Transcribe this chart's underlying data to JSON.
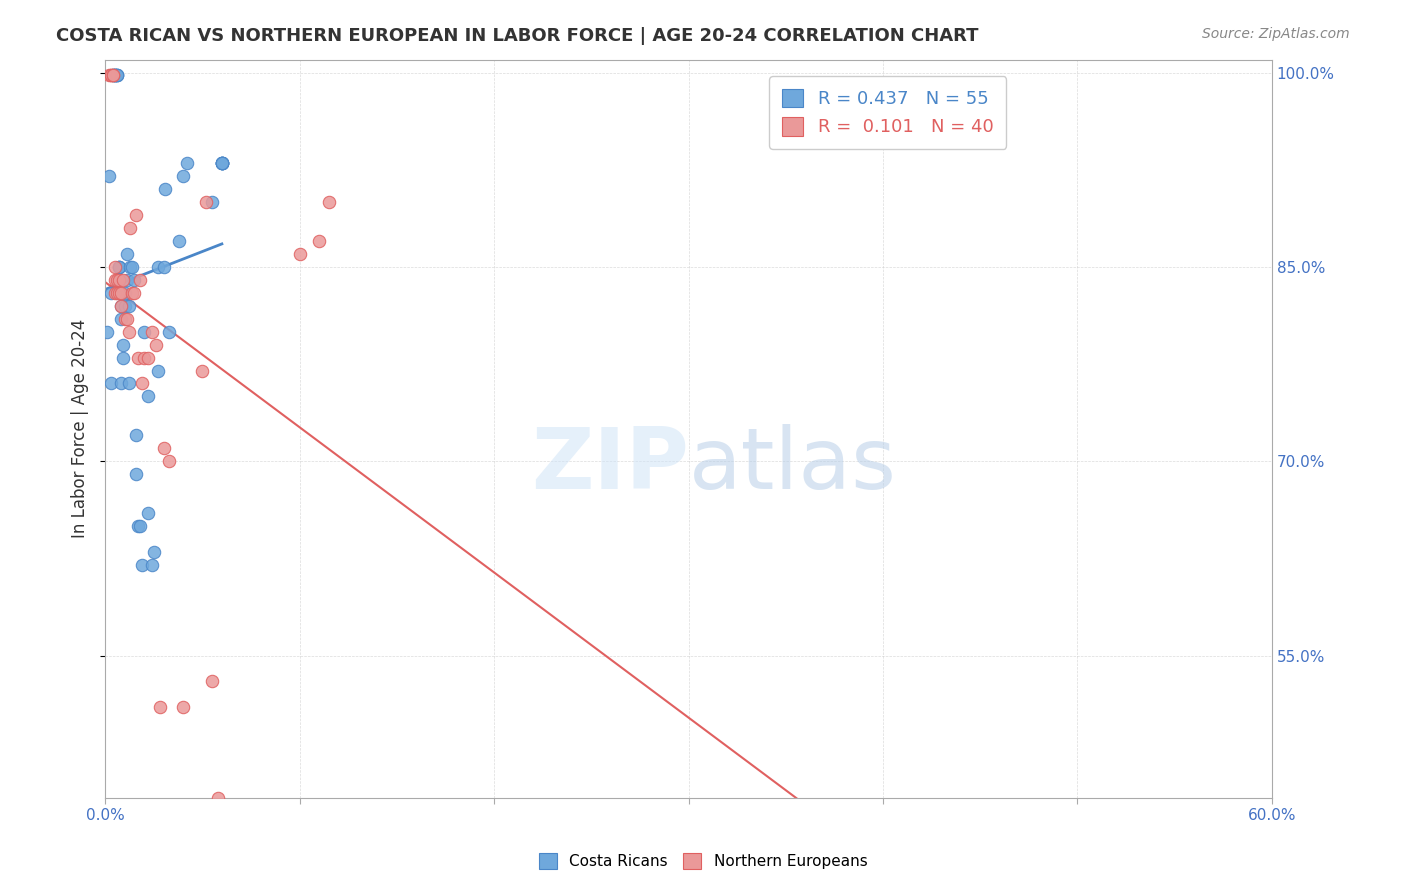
{
  "title": "COSTA RICAN VS NORTHERN EUROPEAN IN LABOR FORCE | AGE 20-24 CORRELATION CHART",
  "source": "Source: ZipAtlas.com",
  "ylabel": "In Labor Force | Age 20-24",
  "cr_R": 0.437,
  "cr_N": 55,
  "ne_R": 0.101,
  "ne_N": 40,
  "cr_color": "#6fa8dc",
  "ne_color": "#ea9999",
  "cr_line_color": "#4a86c8",
  "ne_line_color": "#e06060",
  "background_color": "#ffffff",
  "cr_points_x": [
    0.001,
    0.002,
    0.003,
    0.003,
    0.004,
    0.004,
    0.005,
    0.005,
    0.005,
    0.005,
    0.006,
    0.006,
    0.006,
    0.007,
    0.007,
    0.007,
    0.008,
    0.008,
    0.008,
    0.009,
    0.009,
    0.01,
    0.01,
    0.011,
    0.011,
    0.012,
    0.012,
    0.013,
    0.014,
    0.015,
    0.016,
    0.016,
    0.017,
    0.018,
    0.019,
    0.02,
    0.022,
    0.022,
    0.024,
    0.025,
    0.027,
    0.027,
    0.03,
    0.031,
    0.033,
    0.038,
    0.04,
    0.042,
    0.055,
    0.06,
    0.06,
    0.06,
    0.06,
    0.06,
    0.06
  ],
  "cr_points_y": [
    0.8,
    0.92,
    0.83,
    0.76,
    0.998,
    0.998,
    0.998,
    0.998,
    0.998,
    0.998,
    0.998,
    0.998,
    0.998,
    0.85,
    0.85,
    0.85,
    0.81,
    0.76,
    0.82,
    0.78,
    0.79,
    0.83,
    0.82,
    0.84,
    0.86,
    0.82,
    0.76,
    0.85,
    0.85,
    0.84,
    0.72,
    0.69,
    0.65,
    0.65,
    0.62,
    0.8,
    0.66,
    0.75,
    0.62,
    0.63,
    0.77,
    0.85,
    0.85,
    0.91,
    0.8,
    0.87,
    0.92,
    0.93,
    0.9,
    0.93,
    0.93,
    0.93,
    0.93,
    0.93,
    0.93
  ],
  "ne_points_x": [
    0.002,
    0.003,
    0.003,
    0.004,
    0.004,
    0.005,
    0.005,
    0.005,
    0.006,
    0.006,
    0.007,
    0.007,
    0.008,
    0.008,
    0.009,
    0.01,
    0.011,
    0.012,
    0.013,
    0.014,
    0.015,
    0.016,
    0.017,
    0.018,
    0.019,
    0.02,
    0.022,
    0.024,
    0.026,
    0.028,
    0.03,
    0.033,
    0.04,
    0.05,
    0.052,
    0.055,
    0.058,
    0.1,
    0.11,
    0.115
  ],
  "ne_points_y": [
    0.998,
    0.998,
    0.998,
    0.998,
    0.998,
    0.85,
    0.84,
    0.83,
    0.83,
    0.84,
    0.84,
    0.83,
    0.82,
    0.83,
    0.84,
    0.81,
    0.81,
    0.8,
    0.88,
    0.83,
    0.83,
    0.89,
    0.78,
    0.84,
    0.76,
    0.78,
    0.78,
    0.8,
    0.79,
    0.51,
    0.71,
    0.7,
    0.51,
    0.77,
    0.9,
    0.53,
    0.44,
    0.86,
    0.87,
    0.9
  ],
  "xlim": [
    0.0,
    0.6
  ],
  "ylim": [
    0.44,
    1.01
  ],
  "y_tick_vals": [
    1.0,
    0.85,
    0.7,
    0.55
  ],
  "y_tick_labels": [
    "100.0%",
    "85.0%",
    "70.0%",
    "55.0%"
  ],
  "x_tick_n": 7,
  "tick_color": "#4472c4",
  "grid_color": "#cccccc",
  "spine_color": "#aaaaaa"
}
